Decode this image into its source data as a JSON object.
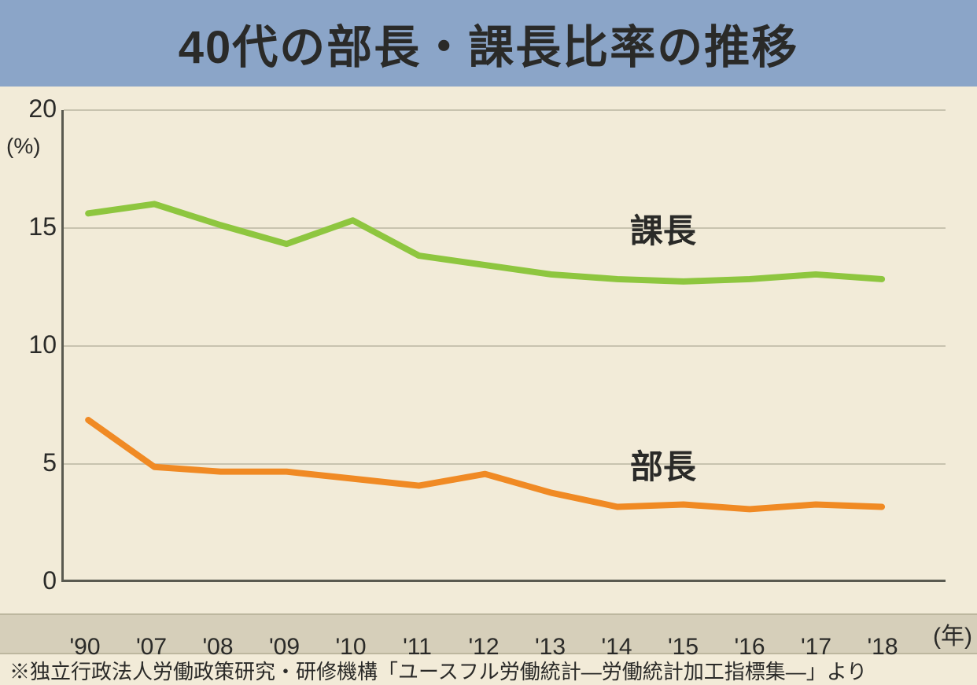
{
  "title": "40代の部長・課長比率の推移",
  "chart": {
    "type": "line",
    "background_color": "#f2ebd8",
    "title_band_color": "#8ba5c8",
    "title_fontsize": 58,
    "title_color": "#2a2a28",
    "ylim": [
      0,
      20
    ],
    "ytick_positions": [
      0,
      5,
      10,
      15,
      20
    ],
    "ytick_labels": [
      "0",
      "5",
      "10",
      "15",
      "20"
    ],
    "y_unit_label": "(%)",
    "grid_color": "#c8c3af",
    "axis_color": "#5a5a50",
    "x_categories": [
      "'90",
      "'07",
      "'08",
      "'09",
      "'10",
      "'11",
      "'12",
      "'13",
      "'14",
      "'15",
      "'16",
      "'17",
      "'18"
    ],
    "x_unit_suffix": "(年)",
    "x_band_background": "#d6cfba",
    "x_band_border": "#bdb79f",
    "axis_label_fontsize": 32,
    "x_label_fontsize": 30,
    "series": [
      {
        "name": "課長",
        "label": "課長",
        "color": "#8ec63f",
        "line_width": 8,
        "values": [
          15.6,
          16.0,
          15.1,
          14.3,
          15.3,
          13.8,
          13.4,
          13.0,
          12.8,
          12.7,
          12.8,
          13.0,
          12.8
        ],
        "label_x_index": 8.2,
        "label_y": 15.2
      },
      {
        "name": "部長",
        "label": "部長",
        "color": "#f08a24",
        "line_width": 8,
        "values": [
          6.8,
          4.8,
          4.6,
          4.6,
          4.3,
          4.0,
          4.5,
          3.7,
          3.1,
          3.2,
          3.0,
          3.2,
          3.1
        ],
        "label_x_index": 8.2,
        "label_y": 5.2
      }
    ],
    "series_label_fontsize": 42
  },
  "footnote": "※独立行政法人労働政策研究・研修機構「ユースフル労働統計―労働統計加工指標集―」より",
  "footnote_fontsize": 26
}
